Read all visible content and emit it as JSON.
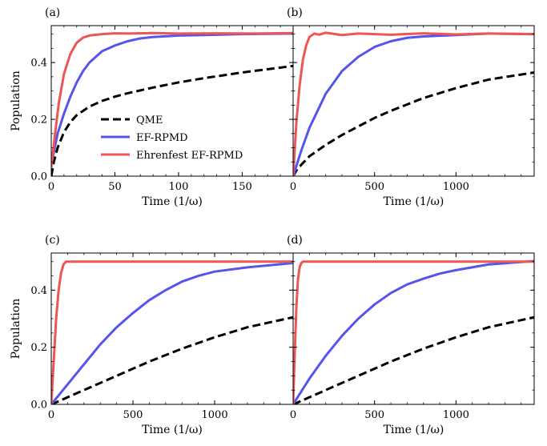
{
  "chart_data": [
    {
      "type": "line",
      "panel_label": "(a)",
      "xlabel": "Time (1/ω)",
      "ylabel": "Population",
      "xlim": [
        0,
        190
      ],
      "ylim": [
        0,
        0.53
      ],
      "xticks": [
        0,
        50,
        100,
        150
      ],
      "yticks": [
        0.0,
        0.2,
        0.4
      ],
      "legend": {
        "placement": "lower-center",
        "entries": [
          "QME",
          "EF-RPMD",
          "Ehrenfest EF-RPMD"
        ]
      },
      "series": [
        {
          "name": "QME",
          "color": "#000000",
          "style": "dashed",
          "x": [
            0,
            2,
            5,
            10,
            15,
            20,
            30,
            40,
            50,
            60,
            80,
            100,
            120,
            150,
            190
          ],
          "y": [
            0.0,
            0.05,
            0.1,
            0.155,
            0.19,
            0.215,
            0.245,
            0.265,
            0.28,
            0.292,
            0.312,
            0.33,
            0.345,
            0.365,
            0.388
          ]
        },
        {
          "name": "EF-RPMD",
          "color": "#5555ee",
          "style": "solid",
          "x": [
            0,
            5,
            10,
            15,
            20,
            25,
            30,
            40,
            50,
            60,
            70,
            80,
            100,
            120,
            150,
            190
          ],
          "y": [
            0.04,
            0.15,
            0.22,
            0.28,
            0.33,
            0.37,
            0.4,
            0.44,
            0.46,
            0.475,
            0.485,
            0.49,
            0.495,
            0.497,
            0.5,
            0.502
          ]
        },
        {
          "name": "Ehrenfest EF-RPMD",
          "color": "#ee5555",
          "style": "solid",
          "x": [
            0,
            3,
            6,
            10,
            15,
            20,
            25,
            30,
            35,
            40,
            50,
            60,
            80,
            100,
            130,
            160,
            190
          ],
          "y": [
            0.03,
            0.15,
            0.26,
            0.36,
            0.43,
            0.47,
            0.488,
            0.495,
            0.498,
            0.5,
            0.503,
            0.502,
            0.504,
            0.502,
            0.503,
            0.502,
            0.504
          ]
        }
      ]
    },
    {
      "type": "line",
      "panel_label": "(b)",
      "xlabel": "Time (1/ω)",
      "ylabel": "",
      "xlim": [
        0,
        1480
      ],
      "ylim": [
        0,
        0.53
      ],
      "xticks": [
        0,
        500,
        1000
      ],
      "yticks": [
        0.0,
        0.2,
        0.4
      ],
      "series": [
        {
          "name": "QME",
          "color": "#000000",
          "style": "dashed",
          "x": [
            0,
            20,
            50,
            100,
            200,
            300,
            400,
            500,
            600,
            800,
            1000,
            1200,
            1480
          ],
          "y": [
            0.0,
            0.02,
            0.04,
            0.07,
            0.11,
            0.145,
            0.175,
            0.205,
            0.23,
            0.275,
            0.31,
            0.34,
            0.365
          ]
        },
        {
          "name": "EF-RPMD",
          "color": "#5555ee",
          "style": "solid",
          "x": [
            0,
            50,
            100,
            150,
            200,
            250,
            300,
            400,
            500,
            600,
            700,
            800,
            1000,
            1200,
            1480
          ],
          "y": [
            0.0,
            0.09,
            0.17,
            0.23,
            0.29,
            0.33,
            0.37,
            0.42,
            0.455,
            0.475,
            0.487,
            0.492,
            0.497,
            0.502,
            0.5
          ]
        },
        {
          "name": "Ehrenfest EF-RPMD",
          "color": "#ee5555",
          "style": "solid",
          "x": [
            0,
            20,
            40,
            60,
            80,
            100,
            130,
            160,
            200,
            300,
            400,
            600,
            800,
            1000,
            1200,
            1480
          ],
          "y": [
            0.0,
            0.19,
            0.32,
            0.41,
            0.46,
            0.49,
            0.502,
            0.498,
            0.505,
            0.497,
            0.502,
            0.498,
            0.503,
            0.499,
            0.502,
            0.5
          ]
        }
      ]
    },
    {
      "type": "line",
      "panel_label": "(c)",
      "xlabel": "Time (1/ω)",
      "ylabel": "Population",
      "xlim": [
        0,
        1480
      ],
      "ylim": [
        0,
        0.53
      ],
      "xticks": [
        0,
        500,
        1000
      ],
      "yticks": [
        0.0,
        0.2,
        0.4
      ],
      "series": [
        {
          "name": "QME",
          "color": "#000000",
          "style": "dashed",
          "x": [
            0,
            50,
            100,
            200,
            300,
            400,
            500,
            600,
            800,
            1000,
            1200,
            1480
          ],
          "y": [
            0.0,
            0.012,
            0.025,
            0.05,
            0.075,
            0.1,
            0.125,
            0.15,
            0.195,
            0.235,
            0.27,
            0.305
          ]
        },
        {
          "name": "EF-RPMD",
          "color": "#5555ee",
          "style": "solid",
          "x": [
            0,
            50,
            100,
            200,
            300,
            400,
            500,
            600,
            700,
            800,
            900,
            1000,
            1200,
            1480
          ],
          "y": [
            0.0,
            0.035,
            0.07,
            0.14,
            0.21,
            0.27,
            0.32,
            0.365,
            0.4,
            0.43,
            0.45,
            0.465,
            0.48,
            0.495
          ]
        },
        {
          "name": "Ehrenfest EF-RPMD",
          "color": "#ee5555",
          "style": "solid",
          "x": [
            0,
            15,
            30,
            45,
            60,
            75,
            90,
            120,
            200,
            500,
            1000,
            1480
          ],
          "y": [
            0.0,
            0.15,
            0.3,
            0.4,
            0.46,
            0.49,
            0.5,
            0.5,
            0.5,
            0.5,
            0.5,
            0.5
          ]
        }
      ]
    },
    {
      "type": "line",
      "panel_label": "(d)",
      "xlabel": "Time (1/ω)",
      "ylabel": "",
      "xlim": [
        0,
        1480
      ],
      "ylim": [
        0,
        0.53
      ],
      "xticks": [
        0,
        500,
        1000
      ],
      "yticks": [
        0.0,
        0.2,
        0.4
      ],
      "series": [
        {
          "name": "QME",
          "color": "#000000",
          "style": "dashed",
          "x": [
            0,
            50,
            100,
            200,
            300,
            400,
            500,
            600,
            800,
            1000,
            1200,
            1480
          ],
          "y": [
            0.0,
            0.012,
            0.025,
            0.05,
            0.075,
            0.1,
            0.125,
            0.15,
            0.195,
            0.235,
            0.27,
            0.305
          ]
        },
        {
          "name": "EF-RPMD",
          "color": "#5555ee",
          "style": "solid",
          "x": [
            0,
            50,
            100,
            200,
            300,
            400,
            500,
            600,
            700,
            800,
            900,
            1000,
            1200,
            1480
          ],
          "y": [
            0.0,
            0.045,
            0.09,
            0.17,
            0.24,
            0.3,
            0.35,
            0.39,
            0.42,
            0.44,
            0.458,
            0.47,
            0.49,
            0.502
          ]
        },
        {
          "name": "Ehrenfest EF-RPMD",
          "color": "#ee5555",
          "style": "solid",
          "x": [
            0,
            10,
            20,
            30,
            40,
            50,
            60,
            80,
            150,
            500,
            1000,
            1480
          ],
          "y": [
            0.0,
            0.18,
            0.34,
            0.44,
            0.48,
            0.495,
            0.5,
            0.5,
            0.5,
            0.5,
            0.5,
            0.5
          ]
        }
      ]
    }
  ]
}
